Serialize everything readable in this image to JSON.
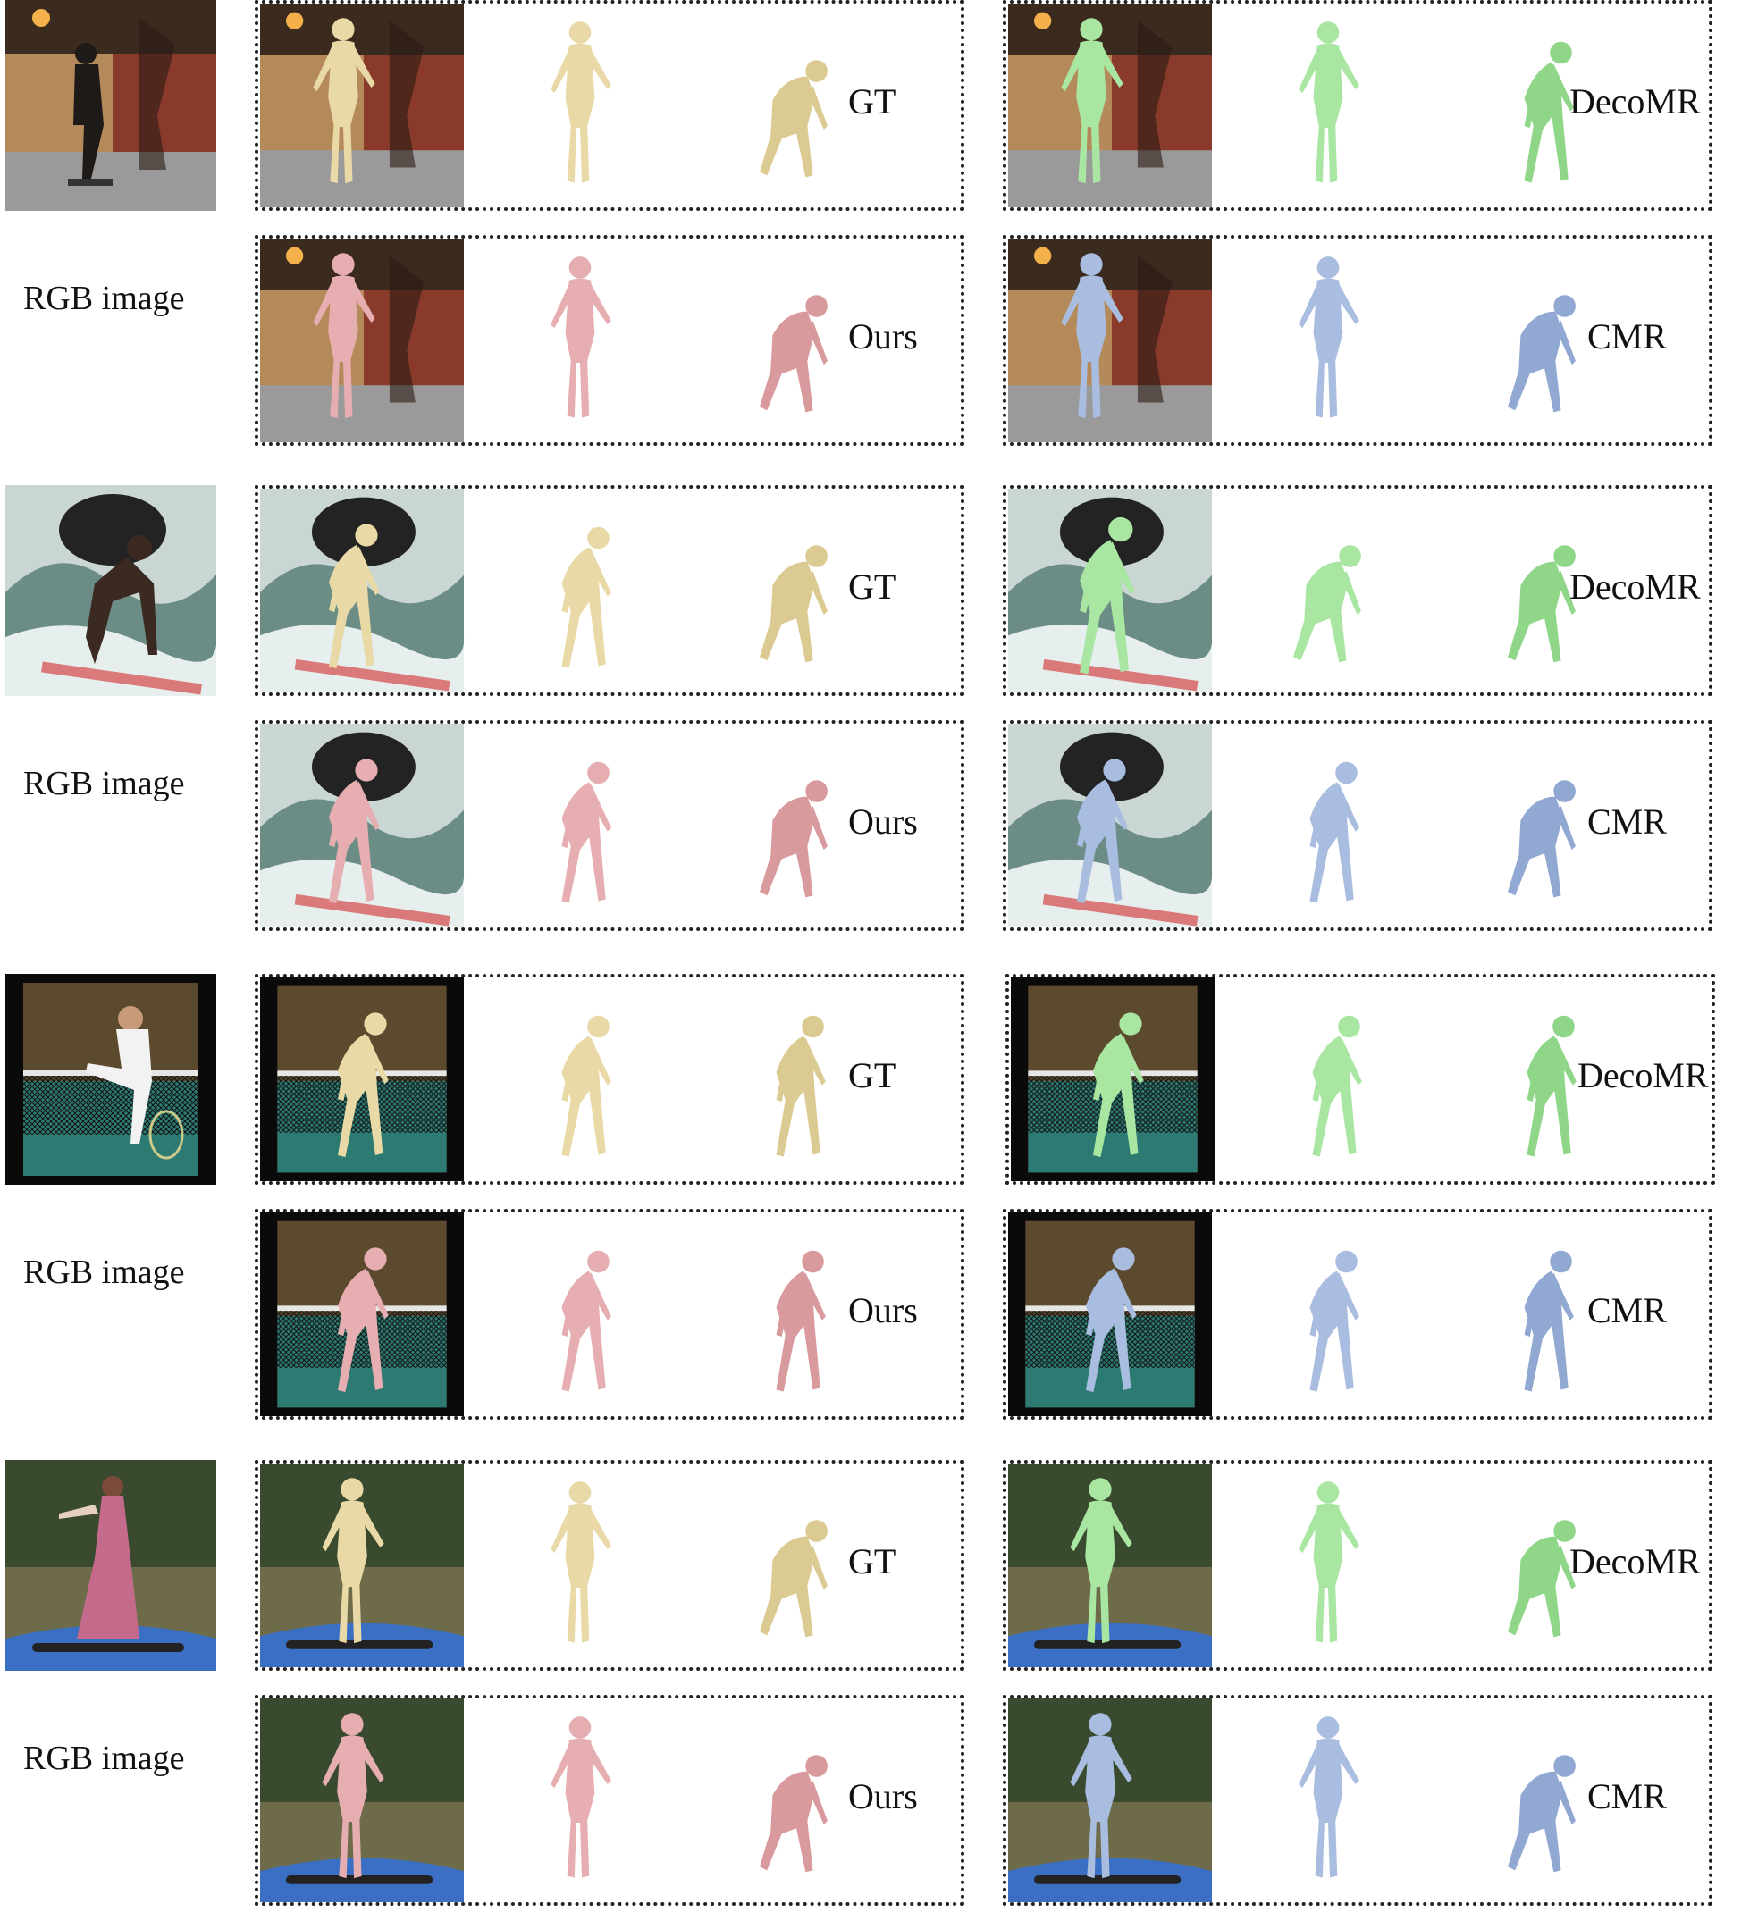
{
  "rgb_label": "RGB image",
  "methods": {
    "gt": "GT",
    "ours": "Ours",
    "decomr": "DecoMR",
    "cmr": "CMR"
  },
  "colors": {
    "gt": "#e8d9a6",
    "ours": "#e6aeb0",
    "decomr": "#a9e6a2",
    "cmr": "#a9bde0"
  },
  "samples": [
    {
      "scene": "skateboarder in corridor"
    },
    {
      "scene": "surfer on wave"
    },
    {
      "scene": "tennis player at net"
    },
    {
      "scene": "snowboarder on tarp"
    }
  ]
}
